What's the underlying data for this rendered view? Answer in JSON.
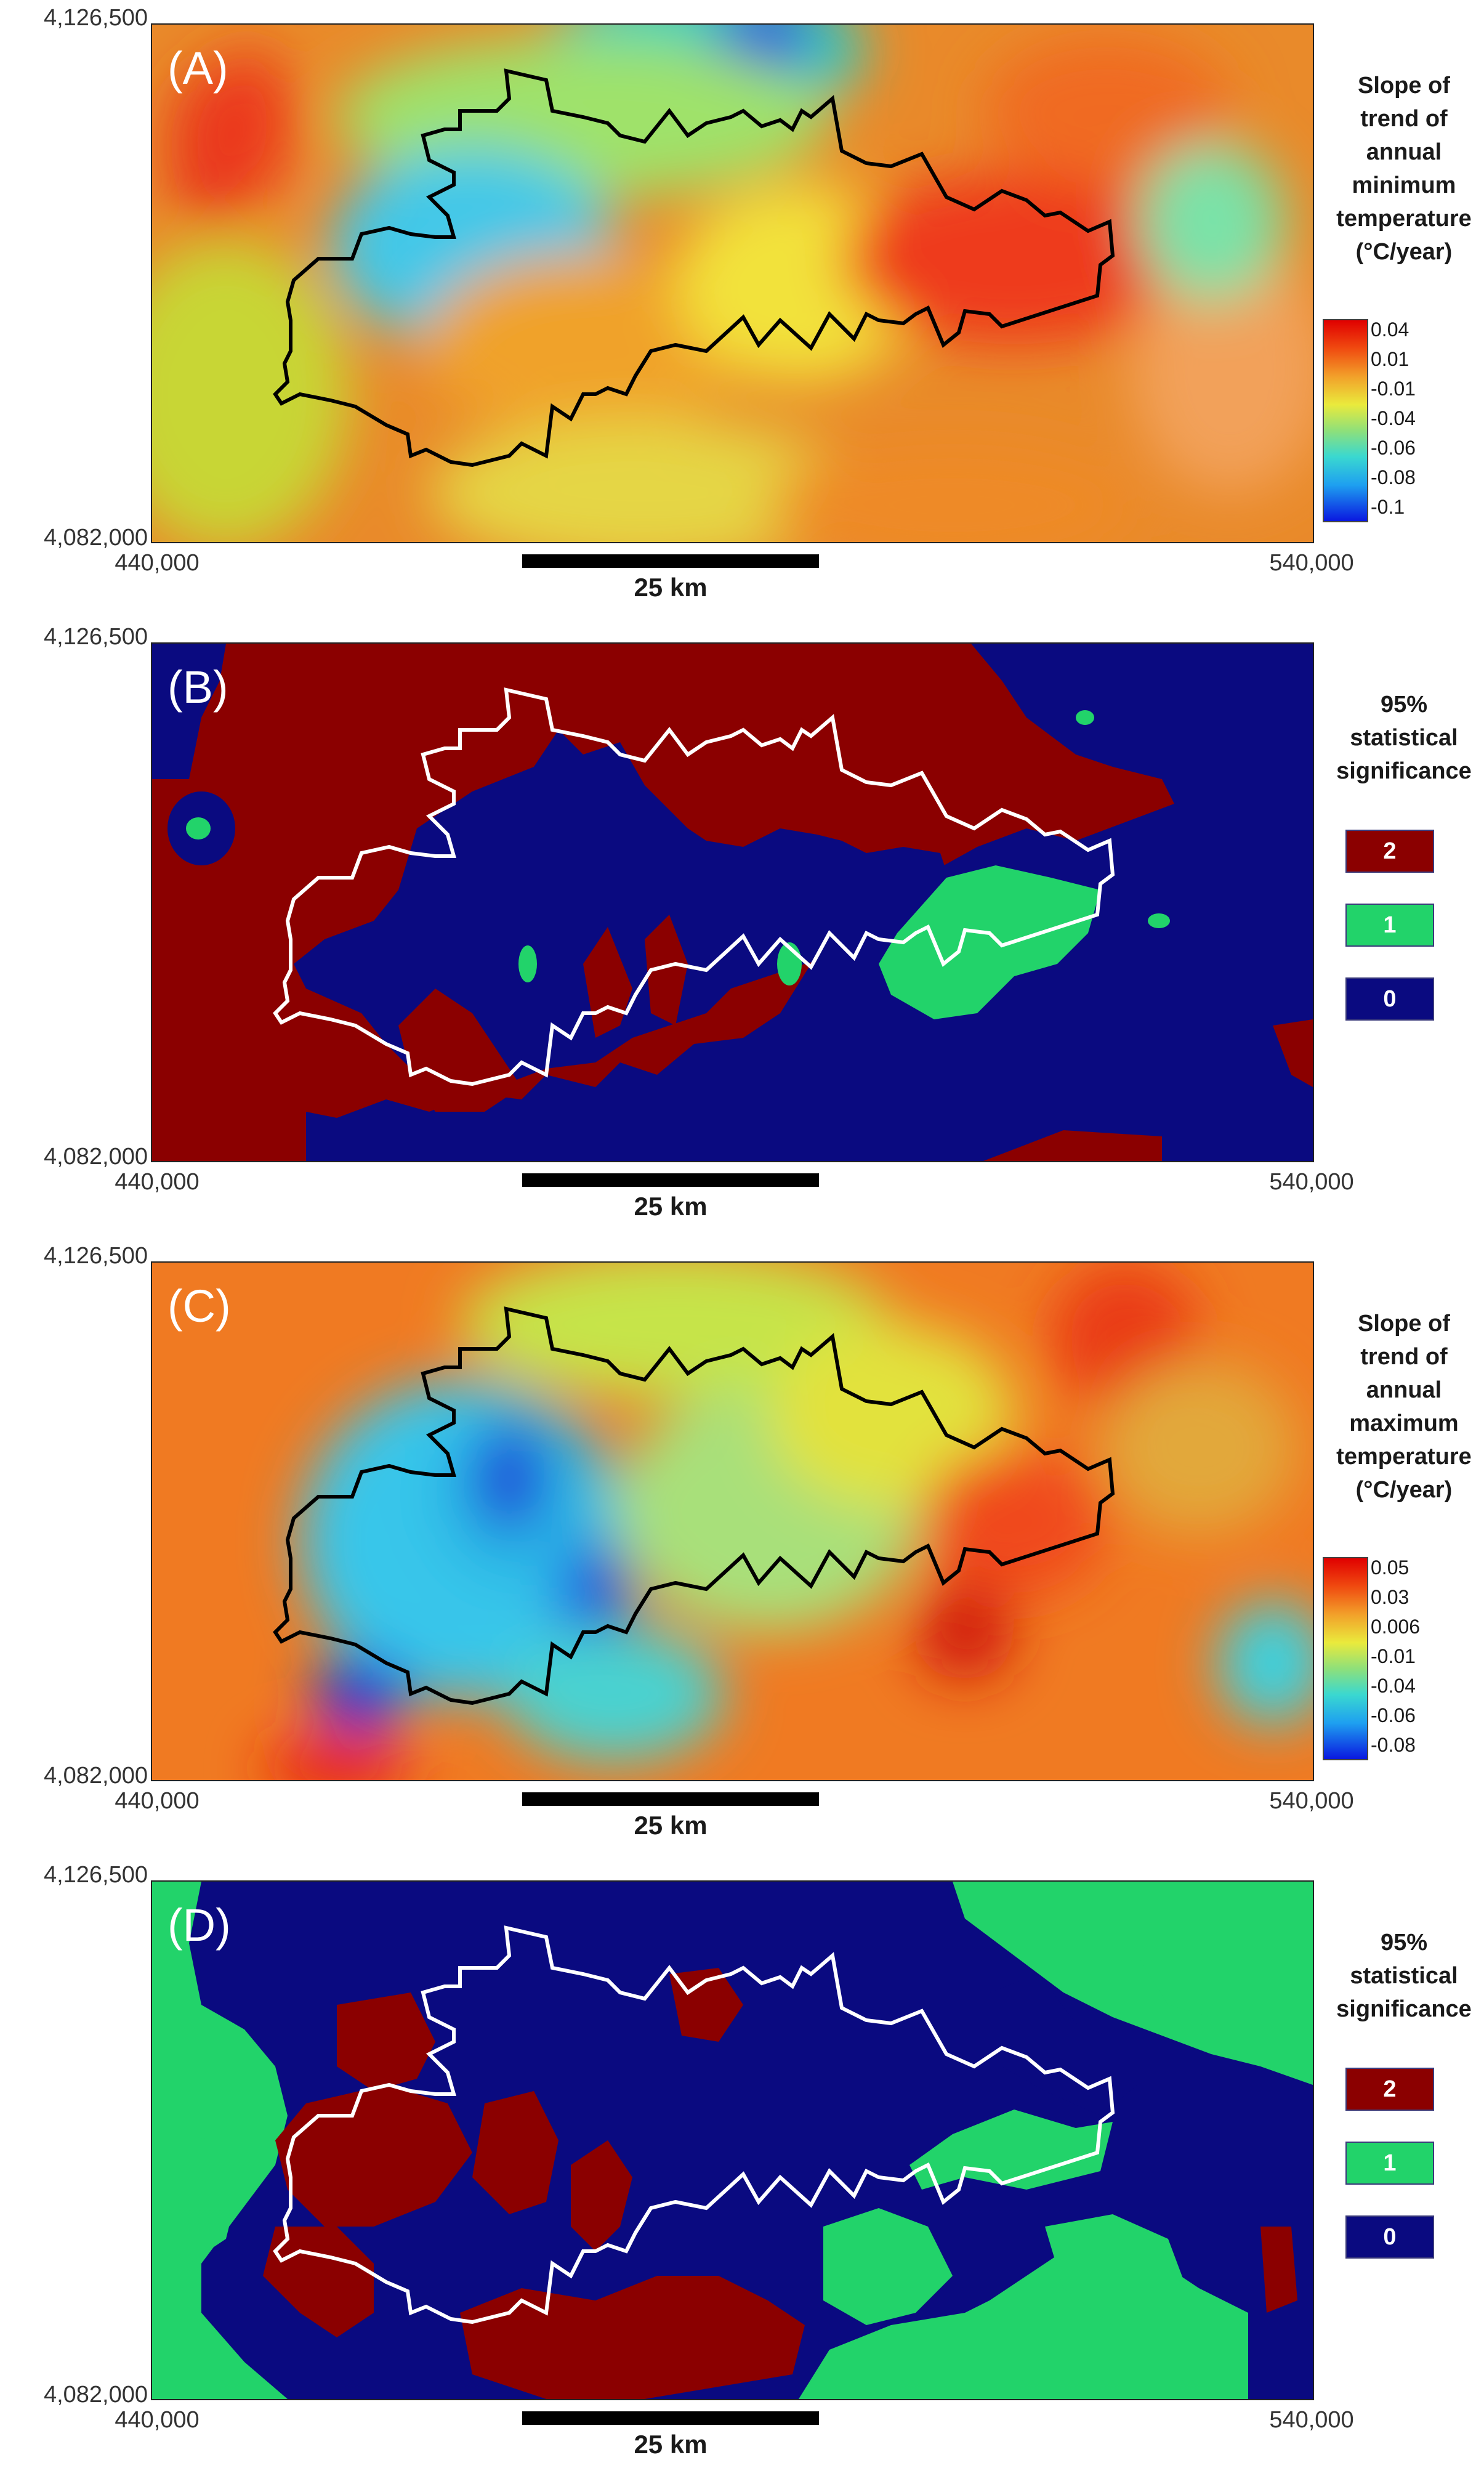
{
  "axes": {
    "y_top": "4,126,500",
    "y_bottom": "4,082,000",
    "x_left": "440,000",
    "x_right": "540,000"
  },
  "scale_bar_label": "25 km",
  "panels": [
    {
      "label": "(A)",
      "type": "continuous",
      "legend_title": [
        "Slope of",
        "trend of",
        "annual",
        "minimum",
        "temperature",
        "(°C/year)"
      ],
      "colorbar_ticks": [
        "0.04",
        "0.01",
        "-0.01",
        "-0.04",
        "-0.06",
        "-0.08",
        "-0.1"
      ],
      "boundary_color": "#000000",
      "background": "#f06a1e"
    },
    {
      "label": "(B)",
      "type": "categorical",
      "legend_title": [
        "95%",
        "statistical",
        "significance"
      ],
      "classes": [
        {
          "value": "2",
          "color": "#8b0000"
        },
        {
          "value": "1",
          "color": "#22d36a"
        },
        {
          "value": "0",
          "color": "#0a0a80"
        }
      ],
      "boundary_color": "#ffffff",
      "background": "#8b0000"
    },
    {
      "label": "(C)",
      "type": "continuous",
      "legend_title": [
        "Slope of",
        "trend of",
        "annual",
        "maximum",
        "temperature",
        "(°C/year)"
      ],
      "colorbar_ticks": [
        "0.05",
        "0.03",
        "0.006",
        "-0.01",
        "-0.04",
        "-0.06",
        "-0.08"
      ],
      "boundary_color": "#000000",
      "background": "#f07a22"
    },
    {
      "label": "(D)",
      "type": "categorical",
      "legend_title": [
        "95%",
        "statistical",
        "significance"
      ],
      "classes": [
        {
          "value": "2",
          "color": "#8b0000"
        },
        {
          "value": "1",
          "color": "#22d36a"
        },
        {
          "value": "0",
          "color": "#0a0a80"
        }
      ],
      "boundary_color": "#ffffff",
      "background": "#22d36a"
    }
  ]
}
